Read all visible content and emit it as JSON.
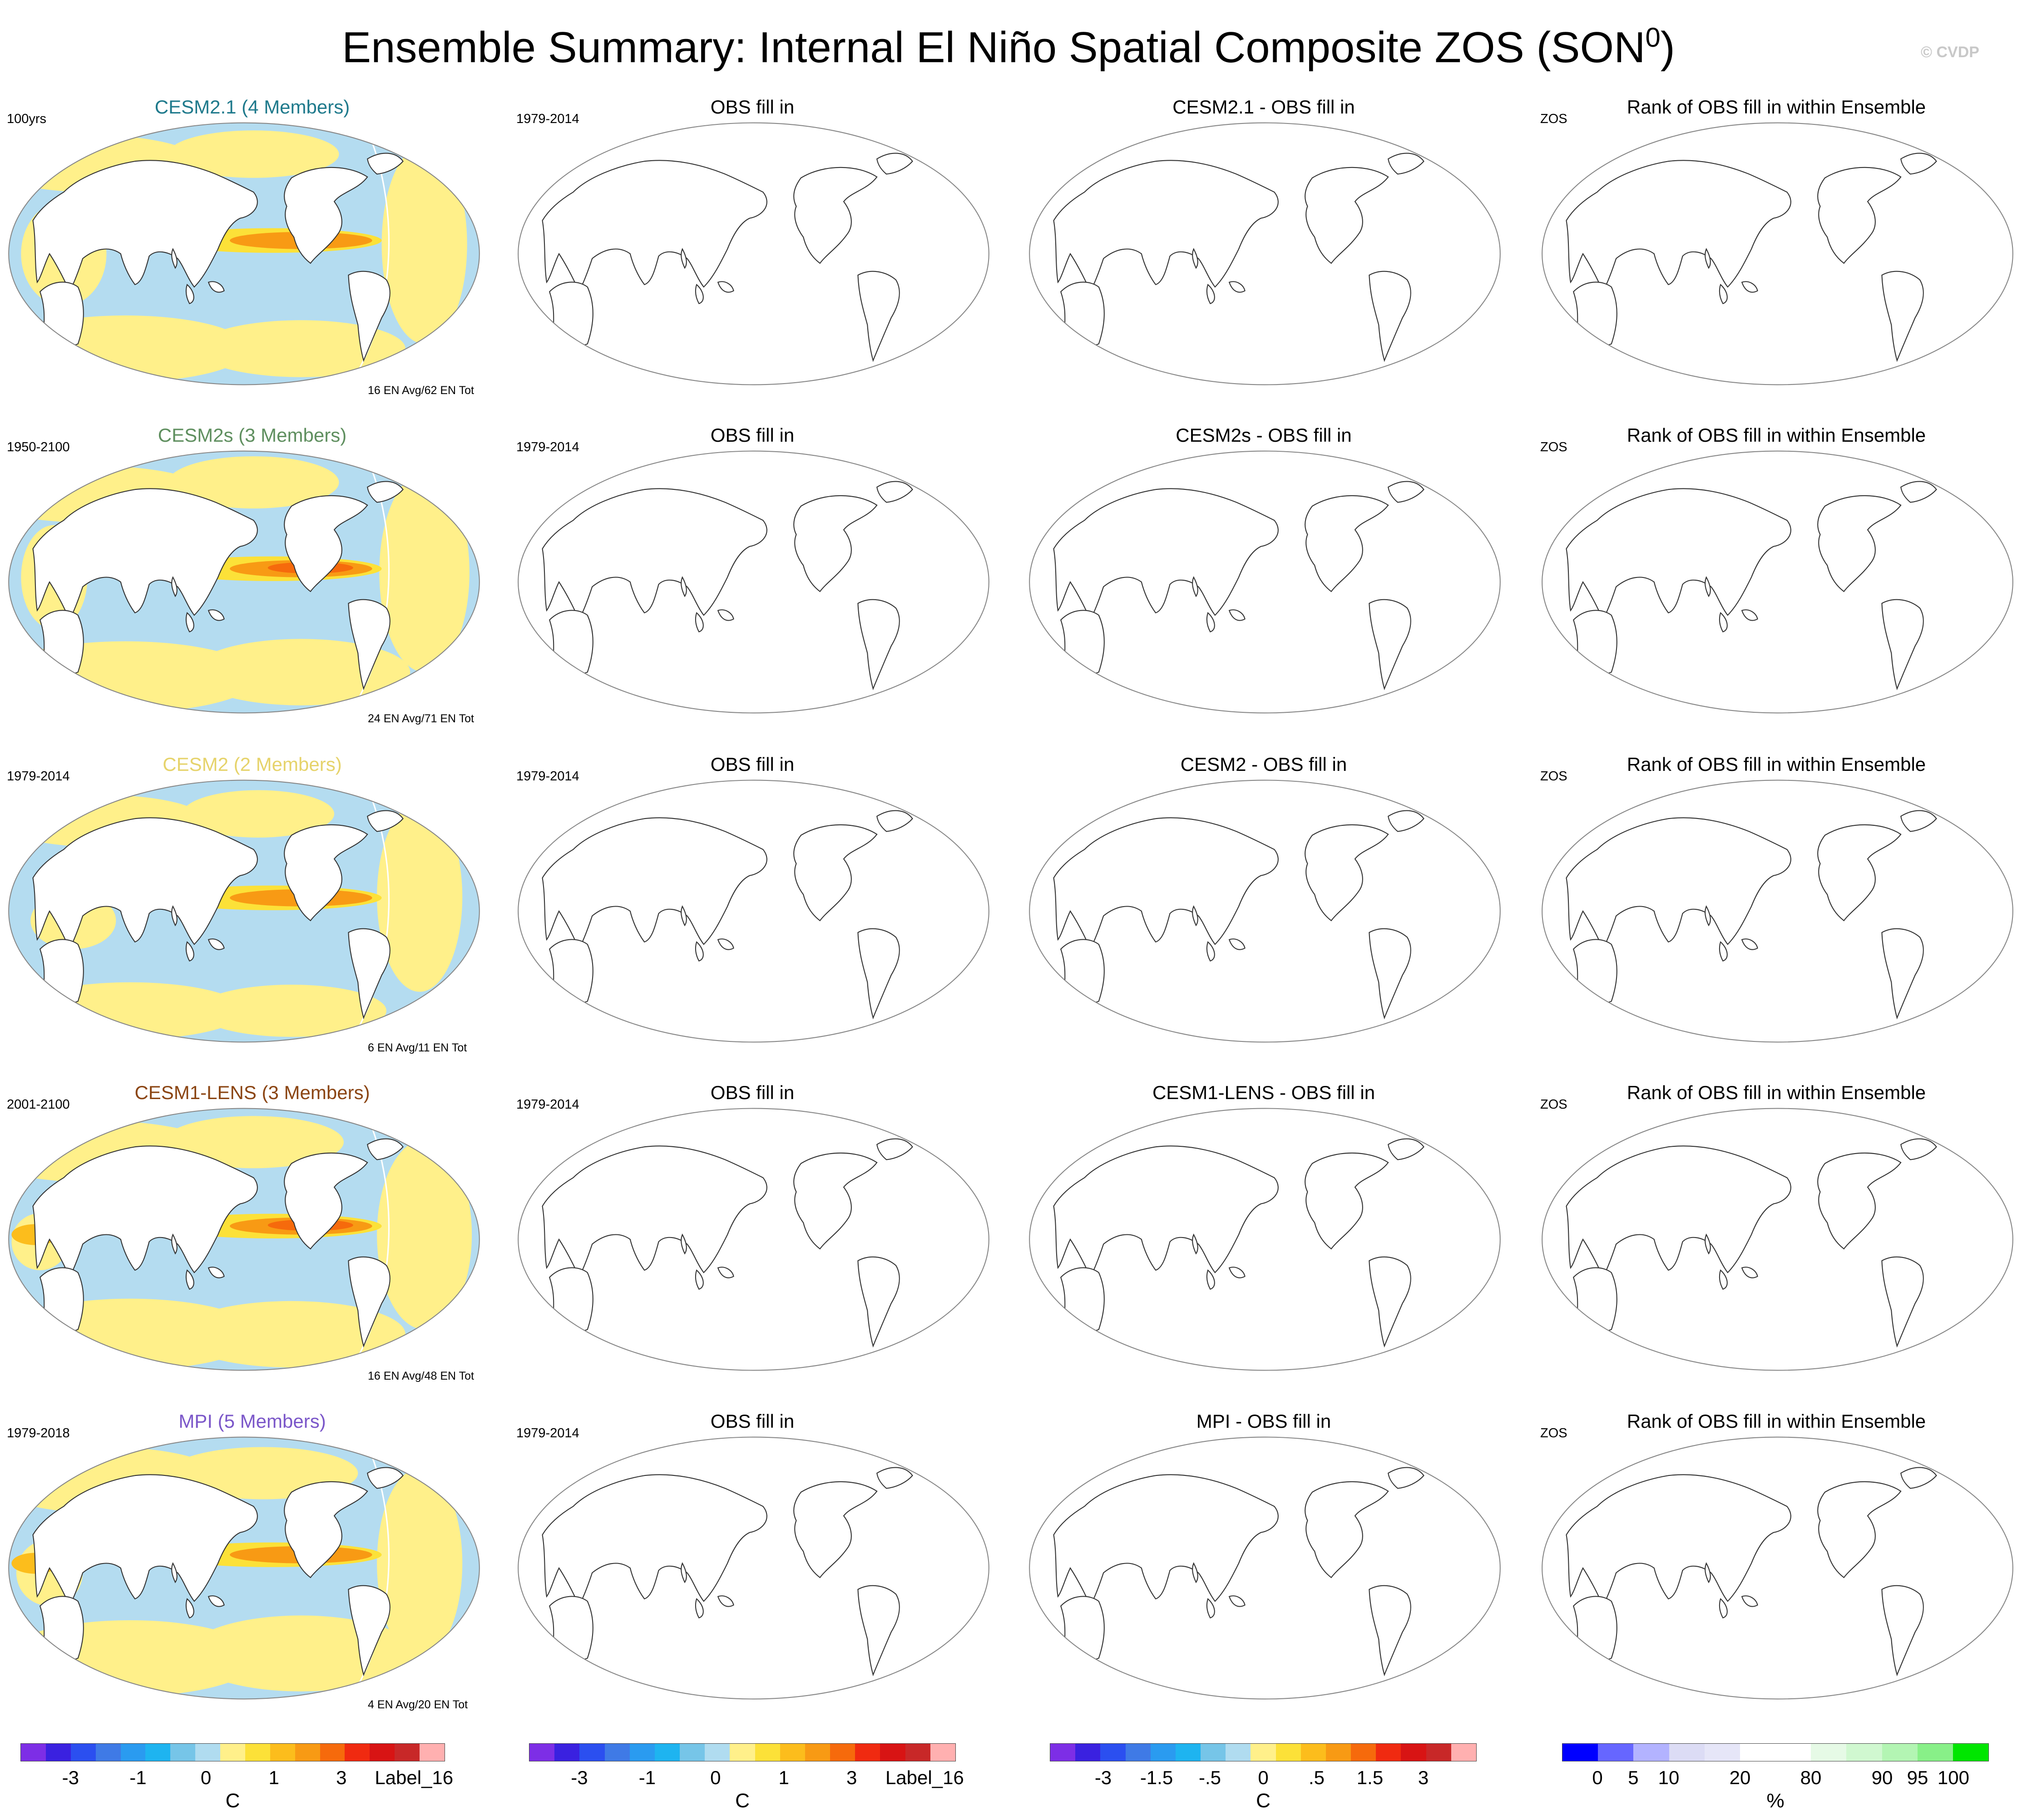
{
  "title": "Ensemble Summary: Internal El Niño Spatial Composite ZOS (SON",
  "title_sup": "0",
  "title_close": ")",
  "copyright": "© CVDP",
  "rows": [
    {
      "title": "CESM2.1 (4 Members)",
      "color": "#1f7a8c",
      "period": "100yrs",
      "count": "16 EN Avg/62 EN Tot",
      "diff_title": "CESM2.1 - OBS fill in",
      "variant": 0
    },
    {
      "title": "CESM2s (3 Members)",
      "color": "#5f8f5f",
      "period": "1950-2100",
      "count": "24 EN Avg/71 EN Tot",
      "diff_title": "CESM2s - OBS fill in",
      "variant": 1
    },
    {
      "title": "CESM2 (2 Members)",
      "color": "#e6d36b",
      "period": "1979-2014",
      "count": "6 EN Avg/11 EN Tot",
      "diff_title": "CESM2 - OBS fill in",
      "variant": 2
    },
    {
      "title": "CESM1-LENS (3 Members)",
      "color": "#8b4513",
      "period": "2001-2100",
      "count": "16 EN Avg/48 EN Tot",
      "diff_title": "CESM1-LENS - OBS fill in",
      "variant": 3
    },
    {
      "title": "MPI (5 Members)",
      "color": "#7b57c9",
      "period": "1979-2018",
      "count": "4 EN Avg/20 EN Tot",
      "diff_title": "MPI - OBS fill in",
      "variant": 4
    }
  ],
  "obs_title": "OBS fill in",
  "obs_period": "1979-2014",
  "rank_title": "Rank of OBS fill in within Ensemble",
  "rank_label": "ZOS",
  "colorbars": [
    {
      "colors": [
        "#7d2ee6",
        "#3a21e0",
        "#2b4ff0",
        "#3f7ae6",
        "#2a9bf0",
        "#1eb4f0",
        "#76c5e8",
        "#b0dcf0",
        "#fff08a",
        "#fce138",
        "#fcbd1c",
        "#f89a14",
        "#f66a0c",
        "#f02a10",
        "#d81414",
        "#c82828",
        "#ffb0b0"
      ],
      "ticks": [
        {
          "label": "-3",
          "pos": 0.118
        },
        {
          "label": "-1",
          "pos": 0.277
        },
        {
          "label": "0",
          "pos": 0.437
        },
        {
          "label": "1",
          "pos": 0.597
        },
        {
          "label": "3",
          "pos": 0.756
        },
        {
          "label": "Label_16",
          "pos": 0.927
        }
      ],
      "unit": "C"
    },
    {
      "colors": [
        "#7d2ee6",
        "#3a21e0",
        "#2b4ff0",
        "#3f7ae6",
        "#2a9bf0",
        "#1eb4f0",
        "#76c5e8",
        "#b0dcf0",
        "#fff08a",
        "#fce138",
        "#fcbd1c",
        "#f89a14",
        "#f66a0c",
        "#f02a10",
        "#d81414",
        "#c82828",
        "#ffb0b0"
      ],
      "ticks": [
        {
          "label": "-3",
          "pos": 0.118
        },
        {
          "label": "-1",
          "pos": 0.277
        },
        {
          "label": "0",
          "pos": 0.437
        },
        {
          "label": "1",
          "pos": 0.597
        },
        {
          "label": "3",
          "pos": 0.756
        },
        {
          "label": "Label_16",
          "pos": 0.927
        }
      ],
      "unit": "C"
    },
    {
      "colors": [
        "#7d2ee6",
        "#3a21e0",
        "#2b4ff0",
        "#3f7ae6",
        "#2a9bf0",
        "#1eb4f0",
        "#76c5e8",
        "#b0dcf0",
        "#fff08a",
        "#fce138",
        "#fcbd1c",
        "#f89a14",
        "#f66a0c",
        "#f02a10",
        "#d81414",
        "#c82828",
        "#ffb0b0"
      ],
      "ticks": [
        {
          "label": "-3",
          "pos": 0.125
        },
        {
          "label": "-1.5",
          "pos": 0.25
        },
        {
          "label": "-.5",
          "pos": 0.375
        },
        {
          "label": "0",
          "pos": 0.5
        },
        {
          "label": ".5",
          "pos": 0.625
        },
        {
          "label": "1.5",
          "pos": 0.75
        },
        {
          "label": "3",
          "pos": 0.875
        }
      ],
      "unit": "C"
    },
    {
      "colors": [
        "#0000ff",
        "#6666ff",
        "#b3b3ff",
        "#dcdcf5",
        "#e6e6f8",
        "#ffffff",
        "#ffffff",
        "#e6fae6",
        "#d0f8d0",
        "#b3f5b3",
        "#88f088",
        "#00e600"
      ],
      "ticks": [
        {
          "label": "0",
          "pos": 0.083
        },
        {
          "label": "5",
          "pos": 0.167
        },
        {
          "label": "10",
          "pos": 0.25
        },
        {
          "label": "20",
          "pos": 0.417
        },
        {
          "label": "80",
          "pos": 0.583
        },
        {
          "label": "90",
          "pos": 0.75
        },
        {
          "label": "95",
          "pos": 0.833
        },
        {
          "label": "100",
          "pos": 0.917
        }
      ],
      "unit": "%"
    }
  ]
}
